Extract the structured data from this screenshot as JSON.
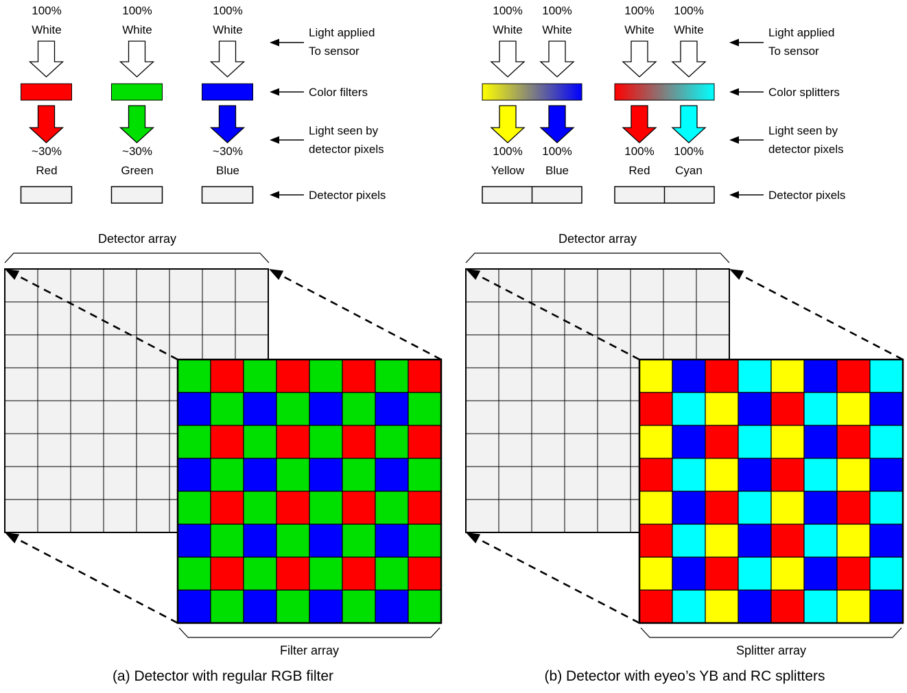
{
  "panel_a": {
    "caption": "(a) Detector with regular RGB filter",
    "detector_array_label": "Detector array",
    "array_label": "Filter array",
    "columns": [
      {
        "input_pct": "100%",
        "input_label": "White",
        "filter_color": "#ff0000",
        "seen_pct": "~30%",
        "seen_label": "Red"
      },
      {
        "input_pct": "100%",
        "input_label": "White",
        "filter_color": "#00e000",
        "seen_pct": "~30%",
        "seen_label": "Green"
      },
      {
        "input_pct": "100%",
        "input_label": "White",
        "filter_color": "#0000ff",
        "seen_pct": "~30%",
        "seen_label": "Blue"
      }
    ],
    "side_labels": {
      "light_applied_1": "Light applied",
      "light_applied_2": "To sensor",
      "middle": "Color filters",
      "seen_1": "Light seen by",
      "seen_2": "detector pixels",
      "detector": "Detector pixels"
    },
    "pattern": [
      "GRGRGRGR",
      "BGBGBGBG",
      "GRGRGRGR",
      "BGBGBGBG",
      "GRGRGRGR",
      "BGBGBGBG",
      "GRGRGRGR",
      "BGBGBGBG"
    ]
  },
  "panel_b": {
    "caption": "(b) Detector with eyeo’s YB and RC splitters",
    "detector_array_label": "Detector array",
    "array_label": "Splitter array",
    "pairs": [
      {
        "inputs": [
          {
            "pct": "100%",
            "label": "White"
          },
          {
            "pct": "100%",
            "label": "White"
          }
        ],
        "gradient": [
          "#ffff00",
          "#0000ff"
        ],
        "outputs": [
          {
            "pct": "100%",
            "label": "Yellow",
            "color": "#ffff00"
          },
          {
            "pct": "100%",
            "label": "Blue",
            "color": "#0000ff"
          }
        ]
      },
      {
        "inputs": [
          {
            "pct": "100%",
            "label": "White"
          },
          {
            "pct": "100%",
            "label": "White"
          }
        ],
        "gradient": [
          "#ff0000",
          "#00ffff"
        ],
        "outputs": [
          {
            "pct": "100%",
            "label": "Red",
            "color": "#ff0000"
          },
          {
            "pct": "100%",
            "label": "Cyan",
            "color": "#00ffff"
          }
        ]
      }
    ],
    "side_labels": {
      "light_applied_1": "Light applied",
      "light_applied_2": "To sensor",
      "middle": "Color splitters",
      "seen_1": "Light seen by",
      "seen_2": "detector pixels",
      "detector": "Detector pixels"
    },
    "pattern": [
      "YBRCYBRC",
      "RCYBRCYB",
      "YBRCYBRC",
      "RCYBRCYB",
      "YBRCYBRC",
      "RCYBRCYB",
      "YBRCYBRC",
      "RCYBRCYB"
    ]
  },
  "colors": {
    "R": "#ff0000",
    "G": "#00e000",
    "B": "#0000ff",
    "Y": "#ffff00",
    "C": "#00ffff",
    "cell_bg": "#f2f2f2",
    "outline": "#000000",
    "arrow_white": "#ffffff"
  }
}
